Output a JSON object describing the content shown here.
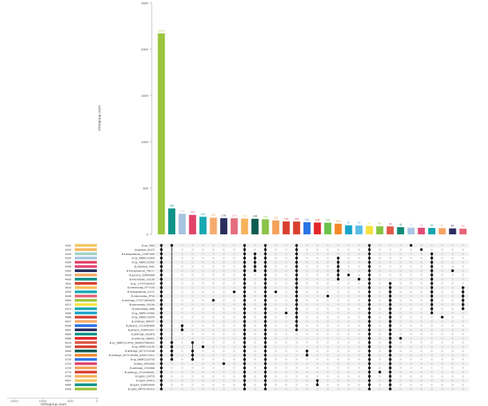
{
  "chart_data": {
    "type": "bar",
    "subtype": "upset",
    "y_axis": {
      "label": "Orthogroup count",
      "ticks": [
        0,
        500,
        1000,
        1500,
        2000,
        2500
      ],
      "ylim": [
        0,
        2500
      ]
    },
    "set_size_axis": {
      "label": "Orthogroup count",
      "ticks": [
        "15000",
        "10000",
        "5000",
        "0"
      ]
    },
    "intersections": [
      {
        "value": 2170,
        "label": "2170",
        "color": "#9bc53d"
      },
      {
        "value": 280,
        "label": "280",
        "color": "#0f9488"
      },
      {
        "value": 222,
        "label": "222",
        "color": "#a7c4e0"
      },
      {
        "value": 210,
        "label": "210",
        "color": "#e0436a"
      },
      {
        "value": 190,
        "label": "190",
        "color": "#17a9b2"
      },
      {
        "value": 180,
        "label": "180",
        "color": "#f6ab6c"
      },
      {
        "value": 175,
        "label": "175",
        "color": "#2b2f5e"
      },
      {
        "value": 174,
        "label": "174",
        "color": "#e46d7f"
      },
      {
        "value": 170,
        "label": "170",
        "color": "#f6b35c"
      },
      {
        "value": 168,
        "label": "168",
        "color": "#0e5c4f"
      },
      {
        "value": 163,
        "label": "163",
        "color": "#8bc34a"
      },
      {
        "value": 150,
        "label": "150",
        "color": "#f3a25b"
      },
      {
        "value": 140,
        "label": "140",
        "color": "#d9412f"
      },
      {
        "value": 138,
        "label": "138",
        "color": "#d9412f"
      },
      {
        "value": 131,
        "label": "131",
        "color": "#2a75e6"
      },
      {
        "value": 128,
        "label": "128",
        "color": "#e3262b"
      },
      {
        "value": 126,
        "label": "126",
        "color": "#6cc24a"
      },
      {
        "value": 115,
        "label": "115",
        "color": "#f5892a"
      },
      {
        "value": 97,
        "label": "97",
        "color": "#1aa3c9"
      },
      {
        "value": 95,
        "label": "95",
        "color": "#5bbde4"
      },
      {
        "value": 90,
        "label": "90",
        "color": "#f5e23c"
      },
      {
        "value": 87,
        "label": "87",
        "color": "#86c440"
      },
      {
        "value": 86,
        "label": "86",
        "color": "#e05a4a"
      },
      {
        "value": 78,
        "label": "78",
        "color": "#128a78"
      },
      {
        "value": 72,
        "label": "72",
        "color": "#a9c7e6"
      },
      {
        "value": 71,
        "label": "71",
        "color": "#e14b74"
      },
      {
        "value": 69,
        "label": "69",
        "color": "#16a5ad"
      },
      {
        "value": 67,
        "label": "67",
        "color": "#f4a262"
      },
      {
        "value": 64,
        "label": "64",
        "color": "#2c2f60"
      },
      {
        "value": 61,
        "label": "61",
        "color": "#e86478"
      }
    ],
    "sets": [
      {
        "name": "B.sp_SM4",
        "size": "4161",
        "color": "#f3c661"
      },
      {
        "name": "B.pilosus_BU72",
        "size": "4202",
        "color": "#f6b85c"
      },
      {
        "name": "B.thiosphaerae_CGMT485",
        "size": "4303",
        "color": "#9fd1c8"
      },
      {
        "name": "B.sp_NBRC12903",
        "size": "4320",
        "color": "#a7c4e0"
      },
      {
        "name": "B.sp_NBRC12952",
        "size": "4350",
        "color": "#e0436a"
      },
      {
        "name": "B.pituitosa_MAJ",
        "size": "4355",
        "color": "#e64a7a"
      },
      {
        "name": "B.thiosphaerae_PRr17",
        "size": "4360",
        "color": "#2b2f5e"
      },
      {
        "name": "B.pecons_DSM2684",
        "size": "4426",
        "color": "#f6ab6c"
      },
      {
        "name": "B.intermedia_G1195",
        "size": "4430",
        "color": "#0f9488"
      },
      {
        "name": "B.sp_CTOT2d0015",
        "size": "4511",
        "color": "#d9412f"
      },
      {
        "name": "B.intermedia_HTT105",
        "size": "4524",
        "color": "#f3c45a"
      },
      {
        "name": "B.thiosphaerae_GJY1",
        "size": "4533",
        "color": "#17a9b2"
      },
      {
        "name": "B.intermedia_JP05",
        "size": "4545",
        "color": "#e86478"
      },
      {
        "name": "B.anthropi_CTOT1000525",
        "size": "4564",
        "color": "#9bc53d"
      },
      {
        "name": "B.intermedia_G1196",
        "size": "4572",
        "color": "#f5e23c"
      },
      {
        "name": "B.intermedia_M86",
        "size": "4572",
        "color": "#17a9b2"
      },
      {
        "name": "B.sp_NBRC12950",
        "size": "4580",
        "color": "#1aa3c9"
      },
      {
        "name": "B.sp_NBRC13004",
        "size": "4588",
        "color": "#d9412f"
      },
      {
        "name": "B.anthropi_MA047",
        "size": "4627",
        "color": "#f6ab6c"
      },
      {
        "name": "B.pilosus_CCUG50899",
        "size": "4635",
        "color": "#2a75e6"
      },
      {
        "name": "B.pilosus_DSM22207",
        "size": "4651",
        "color": "#2b2f5e"
      },
      {
        "name": "B.anthropi_W13P3",
        "size": "4660",
        "color": "#0f9488"
      },
      {
        "name": "B.anthropi_SBA01",
        "size": "4669",
        "color": "#e3262b"
      },
      {
        "name": "B.sp_NBRC113793_AIMDST9800v1",
        "size": "4678",
        "color": "#e05a4a"
      },
      {
        "name": "B.sp_NBRC14130",
        "size": "4680",
        "color": "#d9412f"
      },
      {
        "name": "B.anthropi_NCTC12168",
        "size": "4684",
        "color": "#0e5c4f"
      },
      {
        "name": "B.anthropi_ATCC49188_ASM1740v1",
        "size": "4704",
        "color": "#f5892a"
      },
      {
        "name": "B.sp_NBRC113793",
        "size": "4720",
        "color": "#2a75e6"
      },
      {
        "name": "B.tritici_WS1830",
        "size": "4724",
        "color": "#e0436a"
      },
      {
        "name": "B.anthropi_OG2868",
        "size": "4729",
        "color": "#f3a25b"
      },
      {
        "name": "B.anthropi_CCUG55461",
        "size": "4775",
        "color": "#d9412f"
      },
      {
        "name": "B.lupini_LUP23",
        "size": "4793",
        "color": "#f6b35c"
      },
      {
        "name": "B.lupini_IRA13",
        "size": "4837",
        "color": "#f3c661"
      },
      {
        "name": "B.lupini_DSM16930",
        "size": "4860",
        "color": "#0f9488"
      },
      {
        "name": "B.cytisi_MPOC0X010",
        "size": "4936",
        "color": "#9bc53d"
      }
    ],
    "matrix_columns": [
      [
        0,
        1,
        2,
        3,
        4,
        5,
        6,
        7,
        8,
        9,
        10,
        11,
        12,
        13,
        14,
        15,
        16,
        17,
        18,
        19,
        20,
        21,
        22,
        23,
        24,
        25,
        26,
        27,
        28,
        29,
        30,
        31,
        32,
        33,
        34
      ],
      [
        0,
        23,
        24,
        25,
        26,
        27
      ],
      [
        19,
        20
      ],
      [
        23,
        25,
        26,
        27
      ],
      [
        24
      ],
      [
        13
      ],
      [
        28
      ],
      [
        11
      ],
      [
        0,
        1,
        2,
        3,
        4,
        5,
        6,
        7,
        8,
        9,
        10,
        11,
        12,
        13,
        14,
        15,
        16,
        17,
        18,
        19,
        20,
        21,
        22,
        23,
        24,
        25,
        26,
        27,
        28,
        29,
        30,
        31,
        32,
        33,
        34
      ],
      [
        2,
        3,
        4,
        5,
        6
      ],
      [
        0,
        1,
        2,
        3,
        4,
        5,
        6,
        7,
        8,
        9,
        10,
        11,
        12,
        13,
        14,
        15,
        16,
        17,
        18,
        19,
        20,
        21,
        22,
        23,
        24,
        25,
        26,
        27,
        28,
        29,
        30,
        31,
        32,
        33,
        34
      ],
      [
        11
      ],
      [
        16
      ],
      [
        0,
        1,
        2,
        3,
        4,
        5,
        6,
        7,
        8,
        9,
        10,
        11,
        12,
        13,
        14,
        15,
        16,
        17,
        18,
        19,
        20
      ],
      [
        25,
        26
      ],
      [
        32,
        33
      ],
      [
        12
      ],
      [
        3,
        4,
        5,
        6,
        7,
        8
      ],
      [
        7
      ],
      [
        8
      ],
      [
        0,
        1,
        2,
        3,
        4,
        5,
        6,
        7,
        8,
        9,
        10,
        11,
        12,
        13,
        14,
        15,
        16,
        17,
        18,
        19,
        20,
        21,
        22,
        23,
        24,
        25,
        26,
        27,
        28,
        29,
        30,
        31,
        32,
        33,
        34
      ],
      [
        30
      ],
      [
        9,
        10,
        11,
        12,
        13,
        14,
        15,
        16,
        17,
        18,
        19,
        20,
        21,
        22,
        23,
        24,
        25,
        26,
        27,
        28,
        29,
        30,
        31,
        32,
        33,
        34
      ],
      [
        22
      ],
      [
        0
      ],
      [
        1
      ],
      [
        2,
        3,
        4,
        5,
        6,
        7,
        8,
        9,
        10,
        11,
        12,
        13,
        14,
        15,
        16
      ],
      [
        17
      ],
      [
        6
      ],
      [
        10,
        11,
        12,
        13,
        14,
        15
      ]
    ]
  }
}
